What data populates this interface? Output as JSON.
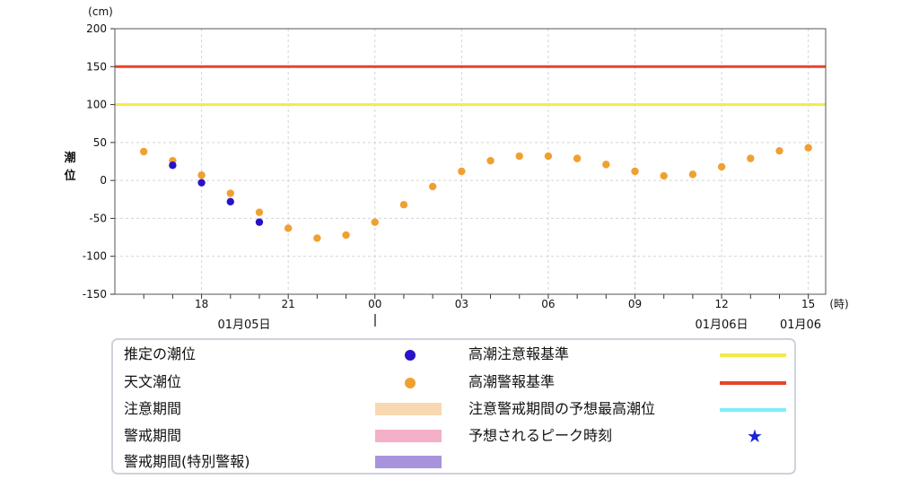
{
  "chart_data": {
    "type": "scatter",
    "ylabel": "潮位",
    "yunit": "(cm)",
    "xunit": "(時)",
    "ylim": [
      -150,
      200
    ],
    "yticks": [
      "200",
      "150",
      "100",
      "50",
      "0",
      "-50",
      "-100",
      "-150"
    ],
    "xticks": [
      {
        "hour": 18,
        "label": "18"
      },
      {
        "hour": 21,
        "label": "21"
      },
      {
        "hour": 24,
        "label": "00"
      },
      {
        "hour": 27,
        "label": "03"
      },
      {
        "hour": 30,
        "label": "06"
      },
      {
        "hour": 33,
        "label": "09"
      },
      {
        "hour": 36,
        "label": "12"
      },
      {
        "hour": 39,
        "label": "15"
      }
    ],
    "date_labels": [
      "01月05日",
      "01月06日",
      "01月06"
    ],
    "thresholds": [
      {
        "name": "高潮警報基準",
        "value": 150,
        "color": "#e8442a"
      },
      {
        "name": "高潮注意報基準",
        "value": 100,
        "color": "#f3ea4a"
      }
    ],
    "series": [
      {
        "name": "天文潮位",
        "color": "#f0a030",
        "points": [
          {
            "time": "01/05 16:00",
            "value": 38
          },
          {
            "time": "01/05 17:00",
            "value": 26
          },
          {
            "time": "01/05 18:00",
            "value": 7
          },
          {
            "time": "01/05 19:00",
            "value": -17
          },
          {
            "time": "01/05 20:00",
            "value": -42
          },
          {
            "time": "01/05 21:00",
            "value": -63
          },
          {
            "time": "01/05 22:00",
            "value": -76
          },
          {
            "time": "01/05 23:00",
            "value": -72
          },
          {
            "time": "01/06 00:00",
            "value": -55
          },
          {
            "time": "01/06 01:00",
            "value": -32
          },
          {
            "time": "01/06 02:00",
            "value": -8
          },
          {
            "time": "01/06 03:00",
            "value": 12
          },
          {
            "time": "01/06 04:00",
            "value": 26
          },
          {
            "time": "01/06 05:00",
            "value": 32
          },
          {
            "time": "01/06 06:00",
            "value": 32
          },
          {
            "time": "01/06 07:00",
            "value": 29
          },
          {
            "time": "01/06 08:00",
            "value": 21
          },
          {
            "time": "01/06 09:00",
            "value": 12
          },
          {
            "time": "01/06 10:00",
            "value": 6
          },
          {
            "time": "01/06 11:00",
            "value": 8
          },
          {
            "time": "01/06 12:00",
            "value": 18
          },
          {
            "time": "01/06 13:00",
            "value": 29
          },
          {
            "time": "01/06 14:00",
            "value": 39
          },
          {
            "time": "01/06 15:00",
            "value": 43
          }
        ]
      },
      {
        "name": "推定の潮位",
        "color": "#2a12c8",
        "points": [
          {
            "time": "01/05 17:00",
            "value": 20
          },
          {
            "time": "01/05 18:00",
            "value": -3
          },
          {
            "time": "01/05 19:00",
            "value": -28
          },
          {
            "time": "01/05 20:00",
            "value": -55
          }
        ]
      }
    ]
  },
  "legend": {
    "left": [
      {
        "label": "推定の潮位",
        "kind": "dot",
        "color": "#2a12c8",
        "icon": "dot-icon"
      },
      {
        "label": "天文潮位",
        "kind": "dot",
        "color": "#f0a030",
        "icon": "dot-icon"
      },
      {
        "label": "注意期間",
        "kind": "band",
        "color": "#f8d8b0",
        "icon": "band-swatch"
      },
      {
        "label": "警戒期間",
        "kind": "band",
        "color": "#f4b0c8",
        "icon": "band-swatch"
      },
      {
        "label": "警戒期間(特別警報)",
        "kind": "band",
        "color": "#a894dc",
        "icon": "band-swatch"
      }
    ],
    "right": [
      {
        "label": "高潮注意報基準",
        "kind": "line",
        "color": "#f3ea4a",
        "icon": "line-swatch"
      },
      {
        "label": "高潮警報基準",
        "kind": "line",
        "color": "#e8442a",
        "icon": "line-swatch"
      },
      {
        "label": "注意警戒期間の予想最高潮位",
        "kind": "line",
        "color": "#7eeef8",
        "icon": "line-swatch"
      },
      {
        "label": "予想されるピーク時刻",
        "kind": "star",
        "color": "#1a23d6",
        "icon": "star-icon"
      }
    ]
  }
}
